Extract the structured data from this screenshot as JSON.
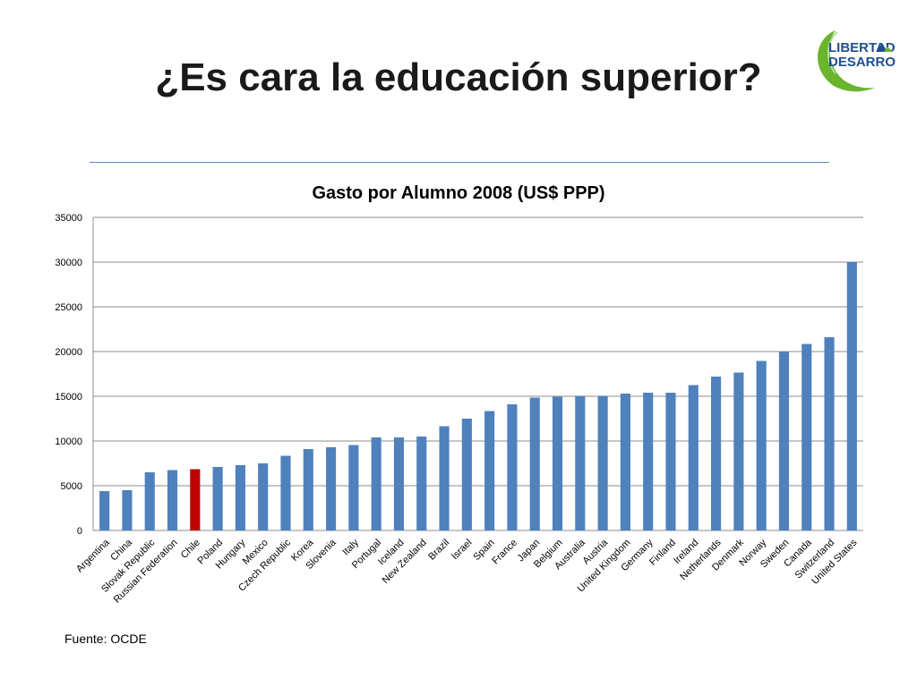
{
  "slide": {
    "title": "¿Es cara la educación superior?",
    "source": "Fuente: OCDE",
    "logo": {
      "line1": "LIBERTAD",
      "line2": "DESARROLLO",
      "colors": {
        "text": "#1f4f8c",
        "swoosh": "#6ab52e"
      }
    }
  },
  "colors": {
    "bar": "#4f81bd",
    "highlight": "#c00000",
    "grid": "#8c8c8c"
  },
  "chart_data": {
    "type": "bar",
    "title": "Gasto por Alumno 2008 (US$ PPP)",
    "xlabel": "",
    "ylabel": "",
    "ylim": [
      0,
      35000
    ],
    "yticks": [
      0,
      5000,
      10000,
      15000,
      20000,
      25000,
      30000,
      35000
    ],
    "grid": true,
    "legend": "none",
    "highlight_category": "Chile",
    "categories": [
      "Argentina",
      "China",
      "Slovak Republic",
      "Russian Federation",
      "Chile",
      "Poland",
      "Hungary",
      "Mexico",
      "Czech Republic",
      "Korea",
      "Slovenia",
      "Italy",
      "Portugal",
      "Iceland",
      "New Zealand",
      "Brazil",
      "Israel",
      "Spain",
      "France",
      "Japan",
      "Belgium",
      "Australia",
      "Austria",
      "United Kingdom",
      "Germany",
      "Finland",
      "Ireland",
      "Netherlands",
      "Denmark",
      "Norway",
      "Sweden",
      "Canada",
      "Switzerland",
      "United States"
    ],
    "values": [
      4400,
      4500,
      6500,
      6750,
      6850,
      7100,
      7300,
      7500,
      8350,
      9100,
      9300,
      9550,
      10400,
      10400,
      10500,
      11650,
      12500,
      13350,
      14100,
      14850,
      14950,
      15050,
      15050,
      15300,
      15400,
      15400,
      16250,
      17200,
      17650,
      18950,
      20000,
      20850,
      21600,
      30000
    ]
  }
}
